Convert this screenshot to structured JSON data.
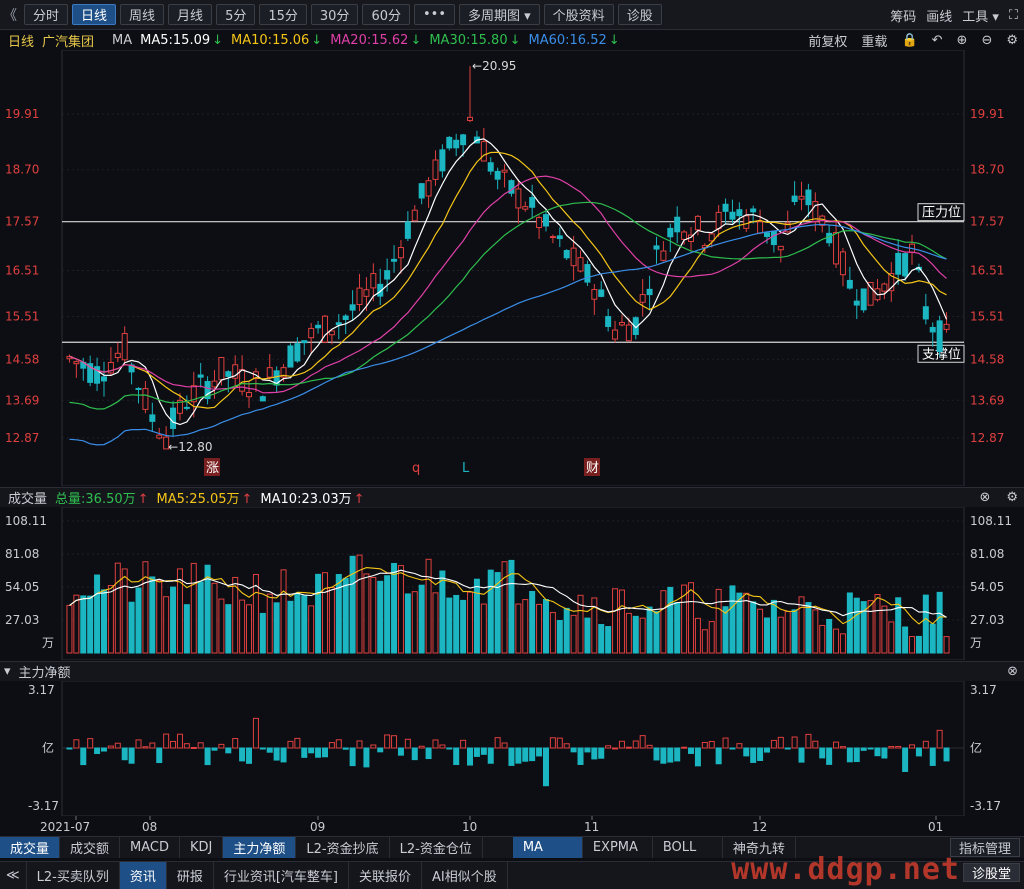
{
  "toolbar": {
    "back_glyph": "《",
    "tabs": [
      "分时",
      "日线",
      "周线",
      "月线",
      "5分",
      "15分",
      "30分",
      "60分",
      "•••",
      "多周期图 ▾",
      "个股资料",
      "诊股"
    ],
    "active_tab": "日线",
    "right": [
      "筹码",
      "画线",
      "工具 ▾",
      "⛶"
    ]
  },
  "info": {
    "period": "日线",
    "stock_name": "广汽集团",
    "indicator": "MA",
    "ma5": "MA5:15.09",
    "ma10": "MA10:15.06",
    "ma20": "MA20:15.62",
    "ma30": "MA30:15.80",
    "ma60": "MA60:16.52",
    "down_arrow": "↓",
    "fq": "前复权",
    "reset": "重载"
  },
  "price_axis": {
    "labels": [
      "19.91",
      "18.70",
      "17.57",
      "16.51",
      "15.51",
      "14.58",
      "13.69",
      "12.87"
    ],
    "high_label": "←20.95",
    "low_label": "←12.80",
    "resistance": "压力位",
    "support": "支撑位",
    "events": [
      "涨",
      "q",
      "L",
      "财"
    ]
  },
  "volume_panel": {
    "title": "成交量",
    "total": "总量:36.50万",
    "ma5": "MA5:25.05万",
    "ma10": "MA10:23.03万",
    "up_arrow": "↑",
    "labels": [
      "108.11",
      "81.08",
      "54.05",
      "27.03"
    ],
    "unit": "万"
  },
  "flow_panel": {
    "title": "主力净额",
    "top": "3.17",
    "mid": "亿",
    "bottom": "-3.17"
  },
  "x_axis": [
    "2021-07",
    "08",
    "09",
    "10",
    "11",
    "12",
    "01"
  ],
  "bottom_tabs": [
    "成交量",
    "成交额",
    "MACD",
    "KDJ",
    "主力净额",
    "L2-资金抄底",
    "L2-资金仓位",
    "MA",
    "EXPMA",
    "BOLL",
    "神奇九转"
  ],
  "indicator_mgr": "指标管理",
  "footer_tabs": [
    "L2-买卖队列",
    "资讯",
    "研报",
    "行业资讯[汽车整车]",
    "关联报价",
    "AI相似个股"
  ],
  "diagnose": "诊股堂",
  "watermark": "www.ddgp.net",
  "colors": {
    "up": "#e0403f",
    "down": "#1bb6c1",
    "ma5": "#ffffff",
    "ma10": "#f5c518",
    "ma20": "#e040a8",
    "ma30": "#2fbf4f",
    "ma60": "#3b8ee8"
  }
}
